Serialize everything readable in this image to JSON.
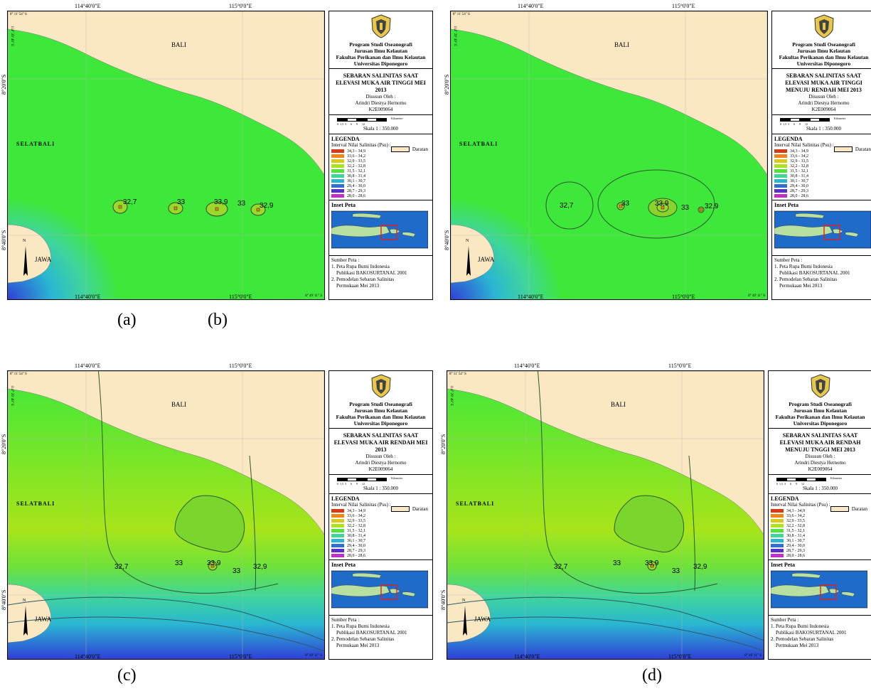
{
  "colors": {
    "land": "#fae8c3",
    "sea": "#3ee83a",
    "legend_swatches": [
      "#d83a17",
      "#f0861a",
      "#d9c820",
      "#aee21c",
      "#55e23a",
      "#3fd69a",
      "#2ab6d2",
      "#2f6fd6",
      "#5a2fd0",
      "#c22ec8"
    ]
  },
  "panels": [
    {
      "id": "a",
      "coords": {
        "top_left": "114°40'0\"E",
        "top_right": "115°0'0\"E",
        "bottom_left": "114°40'0\"E",
        "bottom_right": "115°0'0\"E",
        "left_upper": "8°20'0\"S",
        "left_lower": "8°40'0\"S",
        "corner": "8° 11' 54\" S",
        "corner2": "114° 29' 49\" E",
        "corner3": "8° 49' 11\" S"
      },
      "labels": {
        "bali": "BALI",
        "selat": "SELATBALI",
        "jawa": "JAWA",
        "north": "N"
      },
      "contour_values": [
        "32,7",
        "33",
        "33,9",
        "33",
        "32,9"
      ],
      "title": "SEBARAN SALINITAS SAAT ELEVASI MUKA AIR TINGGI MEI 2013"
    },
    {
      "id": "b",
      "coords": {
        "top_left": "114°40'0\"E",
        "top_right": "115°0'0\"E",
        "bottom_left": "114°40'0\"E",
        "bottom_right": "115°0'0\"E",
        "left_upper": "8°20'0\"S",
        "left_lower": "8°40'0\"S",
        "corner": "8° 11' 54\" S",
        "corner2": "114° 29' 49\" E",
        "corner3": "8° 49' 11\" S"
      },
      "labels": {
        "bali": "BALI",
        "selat": "SELATBALI",
        "jawa": "JAWA",
        "north": "N"
      },
      "contour_values": [
        "32,7",
        "33",
        "33,9",
        "33",
        "32,9"
      ],
      "title": "SEBARAN SALINITAS SAAT ELEVASI MUKA AIR TINGGI MENUJU RENDAH MEI 2013"
    },
    {
      "id": "c",
      "coords": {
        "top_left": "114°40'0\"E",
        "top_right": "115°0'0\"E",
        "bottom_left": "114°40'0\"E",
        "bottom_right": "115°0'0\"E",
        "left_upper": "8°20'0\"S",
        "left_lower": "8°40'0\"S",
        "corner": "8° 11' 54\" S",
        "corner2": "114° 29' 49\" E",
        "corner3": "8° 49' 11\" S"
      },
      "labels": {
        "bali": "BALI",
        "selat": "SELATBALI",
        "jawa": "JAWA",
        "north": "N"
      },
      "contour_values": [
        "32,7",
        "33",
        "33,9",
        "33",
        "32,9"
      ],
      "title": "SEBARAN SALINITAS SAAT ELEVASI MUKA AIR RENDAH MEI 2013"
    },
    {
      "id": "d",
      "coords": {
        "top_left": "114°40'0\"E",
        "top_right": "115°0'0\"E",
        "bottom_left": "114°40'0\"E",
        "bottom_right": "115°0'0\"E",
        "left_upper": "8°20'0\"S",
        "left_lower": "8°40'0\"S",
        "corner": "8° 11' 54\" S",
        "corner2": "114° 29' 49\" E",
        "corner3": "8° 49' 11\" S"
      },
      "labels": {
        "bali": "BALI",
        "selat": "SELATBALI",
        "jawa": "JAWA",
        "north": "N"
      },
      "contour_values": [
        "32,7",
        "33",
        "33,9",
        "33",
        "32,9"
      ],
      "title": "SEBARAN SALINITAS SAAT ELEVASI MUKA AIR RENDAH MENUJU TNGGI MEI 2013"
    }
  ],
  "legend": {
    "institution": [
      "Program Studi Oseanografi",
      "Jurusan Ilmu Kelautan",
      "Fakultas Perikanan dan Ilmu Kelautan",
      "Universitas Diponegoro"
    ],
    "author_heading": "Disusun Oleh :",
    "author_name": "Arindri Diestya Hernomo",
    "author_id": "K2E009064",
    "scale": "Skala 1 : 350.000",
    "scale_ticks": "0  1,5  3      6      9      12",
    "scale_unit": "Kilometer",
    "legend_title": "LEGENDA",
    "interval_title": "Interval Nilai Salinitas (Psu) :",
    "intervals": [
      "34,3 - 34,9",
      "33,6 - 34,2",
      "32,9 - 33,5",
      "32,2 - 32,8",
      "31,5 - 32,1",
      "30,8 - 31,4",
      "30,1 - 30,7",
      "29,4 - 30,0",
      "28,7 - 29,3",
      "28,0 - 28,6"
    ],
    "daratan": "Daratan",
    "inset_title": "Inset Peta",
    "source_title": "Sumber Peta :",
    "sources": [
      "1. Peta Rupa Bumi Indonesia",
      "Publikasi BAKOSURTANAL 2001",
      "2. Pemodelan Sebaran Salinitas",
      "Permukaan Mei 2013"
    ]
  },
  "captions": [
    "(a)",
    "(b)",
    "(c)",
    "(d)"
  ]
}
